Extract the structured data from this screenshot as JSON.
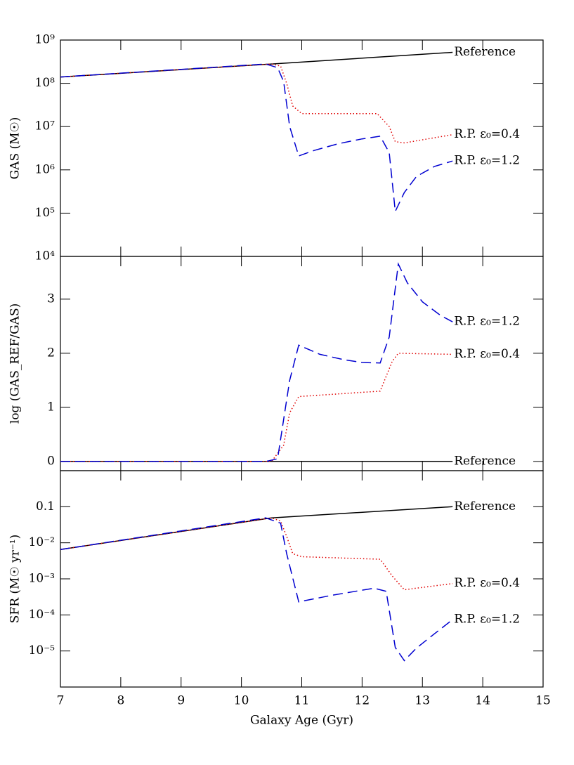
{
  "chart_data": [
    {
      "type": "line",
      "ylabel": "GAS (M☉)",
      "log_y": true,
      "ylim": [
        10000,
        1000000000
      ],
      "xlim": [
        7,
        15
      ],
      "yticks": [
        {
          "value": 10000,
          "label": "10⁴"
        },
        {
          "value": 100000,
          "label": "10⁵"
        },
        {
          "value": 1000000,
          "label": "10⁶"
        },
        {
          "value": 10000000,
          "label": "10⁷"
        },
        {
          "value": 100000000,
          "label": "10⁸"
        },
        {
          "value": 1000000000,
          "label": "10⁹"
        }
      ],
      "series": [
        {
          "name": "Reference",
          "color": "#000000",
          "linestyle": "solid",
          "x": [
            7,
            10.5,
            13.5
          ],
          "values": [
            140000000,
            280000000,
            520000000
          ]
        },
        {
          "name": "R.P. ε₀=0.4",
          "color": "#e00000",
          "linestyle": "dotted",
          "x": [
            7,
            10.5,
            10.65,
            10.75,
            10.85,
            11,
            12.25,
            12.45,
            12.55,
            12.7,
            13.5
          ],
          "values": [
            140000000,
            280000000,
            250000000,
            100000000,
            30000000,
            20000000,
            20000000,
            10000000,
            4500000,
            4200000,
            6500000
          ]
        },
        {
          "name": "R.P. ε₀=1.2",
          "color": "#0000d0",
          "linestyle": "dashed",
          "x": [
            7,
            10.4,
            10.6,
            10.7,
            10.8,
            10.95,
            11.2,
            11.6,
            12.0,
            12.3,
            12.45,
            12.55,
            12.7,
            12.9,
            13.2,
            13.5
          ],
          "values": [
            140000000,
            280000000,
            230000000,
            110000000,
            10000000,
            2100000,
            2800000,
            4000000,
            5200000,
            6000000,
            2500000,
            110000,
            300000,
            700000,
            1200000,
            1600000
          ]
        }
      ]
    },
    {
      "type": "line",
      "ylabel": "log (GAS_REF/GAS)",
      "log_y": false,
      "ylim": [
        -0.17,
        3.79
      ],
      "xlim": [
        7,
        15
      ],
      "yticks": [
        0,
        1,
        2,
        3
      ],
      "series": [
        {
          "name": "Reference",
          "color": "#000000",
          "linestyle": "solid",
          "x": [
            7,
            13.5
          ],
          "values": [
            0,
            0
          ]
        },
        {
          "name": "R.P. ε₀=0.4",
          "color": "#e00000",
          "linestyle": "dotted",
          "x": [
            7,
            10.5,
            10.7,
            10.8,
            10.95,
            12.3,
            12.5,
            12.6,
            13.5
          ],
          "values": [
            0,
            0,
            0.3,
            0.9,
            1.2,
            1.3,
            1.85,
            2.0,
            1.98
          ]
        },
        {
          "name": "R.P. ε₀=1.2",
          "color": "#0000d0",
          "linestyle": "dashed",
          "x": [
            7,
            10.4,
            10.6,
            10.8,
            10.95,
            11.3,
            11.7,
            12.0,
            12.3,
            12.45,
            12.6,
            12.75,
            13.0,
            13.3,
            13.5
          ],
          "values": [
            0,
            0,
            0.05,
            1.5,
            2.15,
            1.98,
            1.88,
            1.83,
            1.82,
            2.3,
            3.65,
            3.3,
            2.95,
            2.7,
            2.58
          ]
        }
      ]
    },
    {
      "type": "line",
      "ylabel": "SFR (M☉ yr⁻¹)",
      "xlabel": "Galaxy Age (Gyr)",
      "log_y": true,
      "ylim": [
        1e-06,
        1
      ],
      "xlim": [
        7,
        15
      ],
      "xticks": [
        7,
        8,
        9,
        10,
        11,
        12,
        13,
        14,
        15
      ],
      "yticks": [
        {
          "value": 1e-05,
          "label": "10⁻⁵"
        },
        {
          "value": 0.0001,
          "label": "10⁻⁴"
        },
        {
          "value": 0.001,
          "label": "10⁻³"
        },
        {
          "value": 0.01,
          "label": "10⁻²"
        },
        0.1
      ],
      "series": [
        {
          "name": "Reference",
          "color": "#000000",
          "linestyle": "solid",
          "x": [
            7,
            10.5,
            13.5
          ],
          "values": [
            0.0065,
            0.049,
            0.1
          ]
        },
        {
          "name": "R.P. ε₀=0.4",
          "color": "#e00000",
          "linestyle": "dotted",
          "x": [
            7,
            10.5,
            10.65,
            10.75,
            10.85,
            11,
            12.3,
            12.5,
            12.7,
            13.5
          ],
          "values": [
            0.0065,
            0.049,
            0.04,
            0.015,
            0.005,
            0.0041,
            0.0035,
            0.0012,
            0.0005,
            0.00074
          ]
        },
        {
          "name": "R.P. ε₀=1.2",
          "color": "#0000d0",
          "linestyle": "dashed",
          "x": [
            7,
            10.4,
            10.65,
            10.75,
            10.95,
            11.5,
            12.2,
            12.4,
            12.55,
            12.7,
            12.9,
            13.2,
            13.5
          ],
          "values": [
            0.0065,
            0.049,
            0.035,
            0.005,
            0.00023,
            0.00035,
            0.00055,
            0.00045,
            1.25e-05,
            5.4e-06,
            1.2e-05,
            3e-05,
            7.4e-05
          ]
        }
      ]
    }
  ]
}
